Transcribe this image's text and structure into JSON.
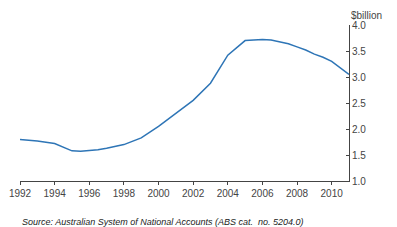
{
  "chart_data": {
    "type": "line",
    "x": [
      1992,
      1993,
      1994,
      1994.5,
      1995,
      1995.5,
      1996,
      1996.5,
      1997,
      1998,
      1999,
      2000,
      2001,
      2002,
      2003,
      2004,
      2005,
      2006,
      2006.5,
      2007,
      2007.5,
      2008,
      2008.5,
      2009,
      2009.5,
      2010,
      2011
    ],
    "values": [
      1.8,
      1.77,
      1.72,
      1.65,
      1.58,
      1.57,
      1.58,
      1.6,
      1.63,
      1.7,
      1.83,
      2.05,
      2.3,
      2.55,
      2.88,
      3.42,
      3.7,
      3.72,
      3.71,
      3.68,
      3.64,
      3.58,
      3.52,
      3.44,
      3.38,
      3.3,
      3.05
    ],
    "color": "#2E75B6",
    "ylabel": "$billion",
    "annotations": [
      "Source: Australian System of National Accounts (ABS cat.  no. 5204.0)"
    ],
    "xlim": [
      1992,
      2011
    ],
    "xticks": [
      1992,
      1994,
      1996,
      1998,
      2000,
      2002,
      2004,
      2006,
      2008,
      2010
    ],
    "ylim": [
      1.0,
      4.0
    ],
    "yticks": [
      {
        "value": 1.0,
        "label": "1.0"
      },
      1.5,
      {
        "value": 2.0,
        "label": "2.0"
      },
      2.5,
      {
        "value": 3.0,
        "label": "3.0"
      },
      3.5,
      {
        "value": 4.0,
        "label": "4.0"
      }
    ],
    "grid": false
  }
}
